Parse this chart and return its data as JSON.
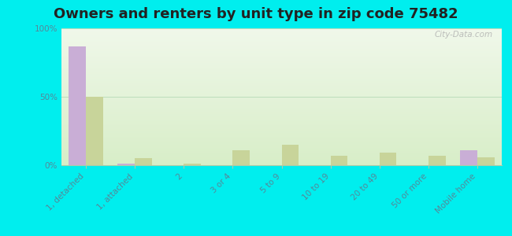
{
  "title": "Owners and renters by unit type in zip code 75482",
  "categories": [
    "1, detached",
    "1, attached",
    "2",
    "3 or 4",
    "5 to 9",
    "10 to 19",
    "20 to 49",
    "50 or more",
    "Mobile home"
  ],
  "owner_values": [
    87,
    1,
    0,
    0,
    0,
    0,
    0,
    0,
    11
  ],
  "renter_values": [
    50,
    5,
    1,
    11,
    15,
    7,
    9,
    7,
    6
  ],
  "owner_color": "#c9aed6",
  "renter_color": "#c8d49a",
  "background_color": "#00eeee",
  "grad_top": "#d8eec8",
  "grad_bottom": "#f0f8ea",
  "ylim": [
    0,
    100
  ],
  "yticks": [
    0,
    50,
    100
  ],
  "ytick_labels": [
    "0%",
    "50%",
    "100%"
  ],
  "watermark": "City-Data.com",
  "title_fontsize": 13,
  "tick_fontsize": 7.5,
  "legend_fontsize": 9,
  "tick_color": "#558899",
  "label_color": "#558899"
}
